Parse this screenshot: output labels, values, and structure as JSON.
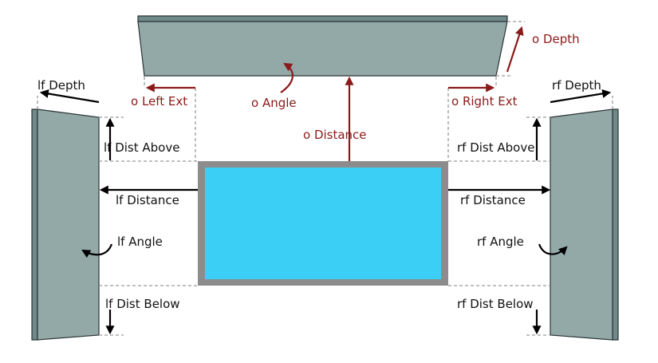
{
  "colors": {
    "panel": "#92a9a8",
    "screen_frame": "#8c8c8c",
    "screen": "#3ccff5",
    "accent_red": "#8b1a1a",
    "guide_dash": "#9a9a9a"
  },
  "labels": {
    "o_depth": "o Depth",
    "o_angle": "o Angle",
    "o_left_ext": "o Left Ext",
    "o_right_ext": "o Right Ext",
    "o_distance": "o Distance",
    "lf_depth": "lf Depth",
    "lf_dist_above": "lf Dist Above",
    "lf_distance": "lf Distance",
    "lf_angle": "lf Angle",
    "lf_dist_below": "lf Dist Below",
    "rf_depth": "rf Depth",
    "rf_dist_above": "rf Dist Above",
    "rf_distance": "rf Distance",
    "rf_angle": "rf Angle",
    "rf_dist_below": "rf Dist Below"
  }
}
